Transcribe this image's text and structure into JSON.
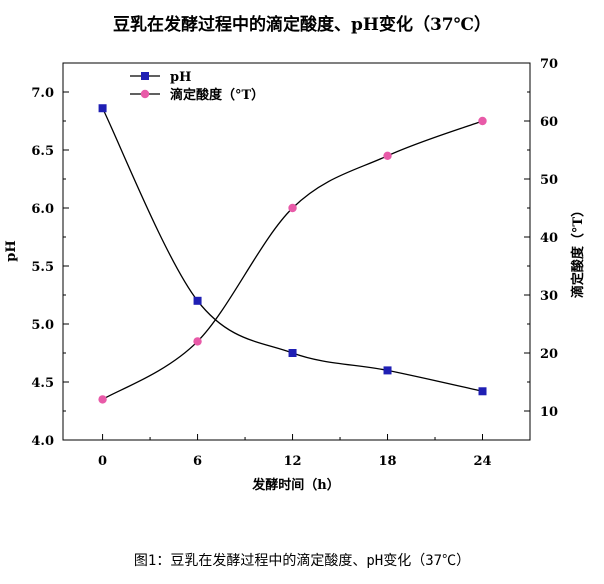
{
  "chart_data": {
    "type": "line",
    "title": "豆乳在发酵过程中的滴定酸度、pH变化（37℃）",
    "xlabel": "发酵时间（h）",
    "ylabel_left": "pH",
    "ylabel_right": "滴定酸度（°T）",
    "x": [
      0,
      6,
      12,
      18,
      24
    ],
    "x_ticks": [
      "0",
      "6",
      "12",
      "18",
      "24"
    ],
    "xlim": [
      -2.5,
      27
    ],
    "ylim_left": [
      4.0,
      7.25
    ],
    "yticks_left": [
      "4.0",
      "4.5",
      "5.0",
      "5.5",
      "6.0",
      "6.5",
      "7.0"
    ],
    "ylim_right": [
      5,
      70
    ],
    "yticks_right": [
      "10",
      "20",
      "30",
      "40",
      "50",
      "60",
      "70"
    ],
    "series": [
      {
        "name": "pH",
        "axis": "left",
        "marker": "square",
        "color": "#1f1fb4",
        "values": [
          6.86,
          5.2,
          4.75,
          4.6,
          4.42
        ]
      },
      {
        "name": "滴定酸度（°T）",
        "axis": "right",
        "marker": "circle",
        "color": "#e85aa8",
        "values": [
          12,
          22,
          45,
          54,
          60
        ]
      }
    ],
    "legend_position": "top-left",
    "grid": false
  },
  "caption": "图1：豆乳在发酵过程中的滴定酸度、pH变化（37℃）"
}
